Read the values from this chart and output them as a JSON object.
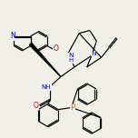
{
  "bg_color": "#f0efe8",
  "bond_color": "#000000",
  "atom_colors": {
    "N": "#0000cc",
    "O": "#cc0000",
    "P": "#dd6600",
    "H": "#0000cc"
  },
  "scale": 1.0
}
